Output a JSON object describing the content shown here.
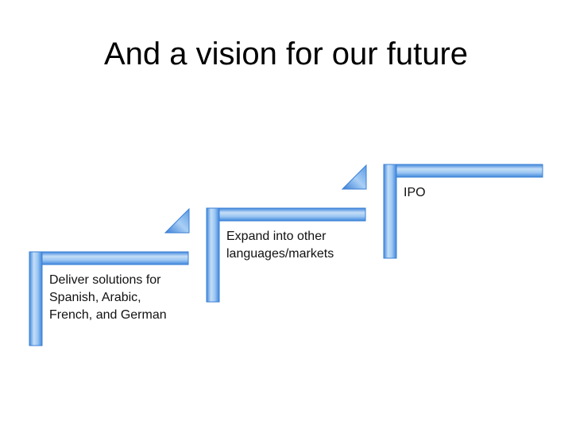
{
  "slide": {
    "title": "And a vision for our future"
  },
  "steps": [
    {
      "label": "Deliver solutions for\nSpanish, Arabic,\nFrench, and German"
    },
    {
      "label": "Expand into other\nlanguages/markets"
    },
    {
      "label": "IPO"
    }
  ],
  "colors": {
    "bar_light": "#b9d7f5",
    "bar_dark": "#4a8fe0",
    "bar_core": "#8fc0f2",
    "arrow": "#5c9ce6"
  }
}
